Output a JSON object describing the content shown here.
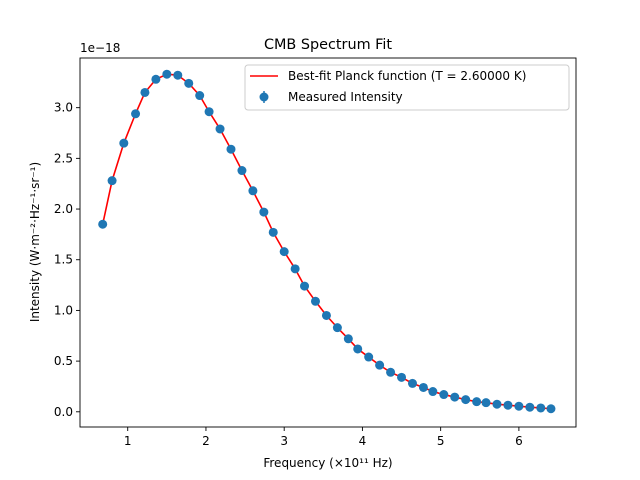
{
  "chart_data": {
    "type": "scatter",
    "title": "CMB Spectrum Fit",
    "xlabel": "Frequency (×10¹¹ Hz)",
    "ylabel": "Intensity (W·m⁻²·Hz⁻¹·sr⁻¹)",
    "y_offset_label": "1e−18",
    "xlim": [
      0.39,
      6.73
    ],
    "ylim": [
      -0.15,
      3.49
    ],
    "xticks": [
      1,
      2,
      3,
      4,
      5,
      6
    ],
    "yticks": [
      0.0,
      0.5,
      1.0,
      1.5,
      2.0,
      2.5,
      3.0
    ],
    "xtick_labels": [
      "1",
      "2",
      "3",
      "4",
      "5",
      "6"
    ],
    "ytick_labels": [
      "0.0",
      "0.5",
      "1.0",
      "1.5",
      "2.0",
      "2.5",
      "3.0"
    ],
    "legend_position": "upper right",
    "series": [
      {
        "name": "Best-fit Planck function (T = 2.60000 K)",
        "kind": "line",
        "color": "#ff0000",
        "temperature_K": 2.6,
        "x": [
          0.68,
          0.8,
          0.95,
          1.1,
          1.22,
          1.36,
          1.5,
          1.64,
          1.78,
          1.92,
          2.04,
          2.18,
          2.32,
          2.46,
          2.6,
          2.74,
          2.86,
          3.0,
          3.14,
          3.26,
          3.4,
          3.54,
          3.68,
          3.82,
          3.94,
          4.08,
          4.22,
          4.36,
          4.5,
          4.64,
          4.78,
          4.9,
          5.04,
          5.18,
          5.32,
          5.46,
          5.58,
          5.72,
          5.86,
          6.0,
          6.14,
          6.28,
          6.41
        ],
        "y": [
          1.85,
          2.28,
          2.65,
          2.94,
          3.15,
          3.28,
          3.33,
          3.32,
          3.24,
          3.12,
          2.96,
          2.79,
          2.59,
          2.38,
          2.18,
          1.97,
          1.77,
          1.58,
          1.41,
          1.24,
          1.09,
          0.95,
          0.83,
          0.72,
          0.62,
          0.54,
          0.46,
          0.39,
          0.34,
          0.28,
          0.24,
          0.2,
          0.17,
          0.145,
          0.12,
          0.1,
          0.09,
          0.075,
          0.065,
          0.055,
          0.045,
          0.038,
          0.03
        ]
      },
      {
        "name": "Measured Intensity",
        "kind": "errorbar",
        "color": "#1f77b4",
        "x": [
          0.68,
          0.8,
          0.95,
          1.1,
          1.22,
          1.36,
          1.5,
          1.64,
          1.78,
          1.92,
          2.04,
          2.18,
          2.32,
          2.46,
          2.6,
          2.74,
          2.86,
          3.0,
          3.14,
          3.26,
          3.4,
          3.54,
          3.68,
          3.82,
          3.94,
          4.08,
          4.22,
          4.36,
          4.5,
          4.64,
          4.78,
          4.9,
          5.04,
          5.18,
          5.32,
          5.46,
          5.58,
          5.72,
          5.86,
          6.0,
          6.14,
          6.28,
          6.41
        ],
        "y": [
          1.85,
          2.28,
          2.65,
          2.94,
          3.15,
          3.28,
          3.33,
          3.32,
          3.24,
          3.12,
          2.96,
          2.79,
          2.59,
          2.38,
          2.18,
          1.97,
          1.77,
          1.58,
          1.41,
          1.24,
          1.09,
          0.95,
          0.83,
          0.72,
          0.62,
          0.54,
          0.46,
          0.39,
          0.34,
          0.28,
          0.24,
          0.2,
          0.17,
          0.145,
          0.12,
          0.1,
          0.09,
          0.075,
          0.065,
          0.055,
          0.045,
          0.038,
          0.03
        ]
      }
    ]
  }
}
